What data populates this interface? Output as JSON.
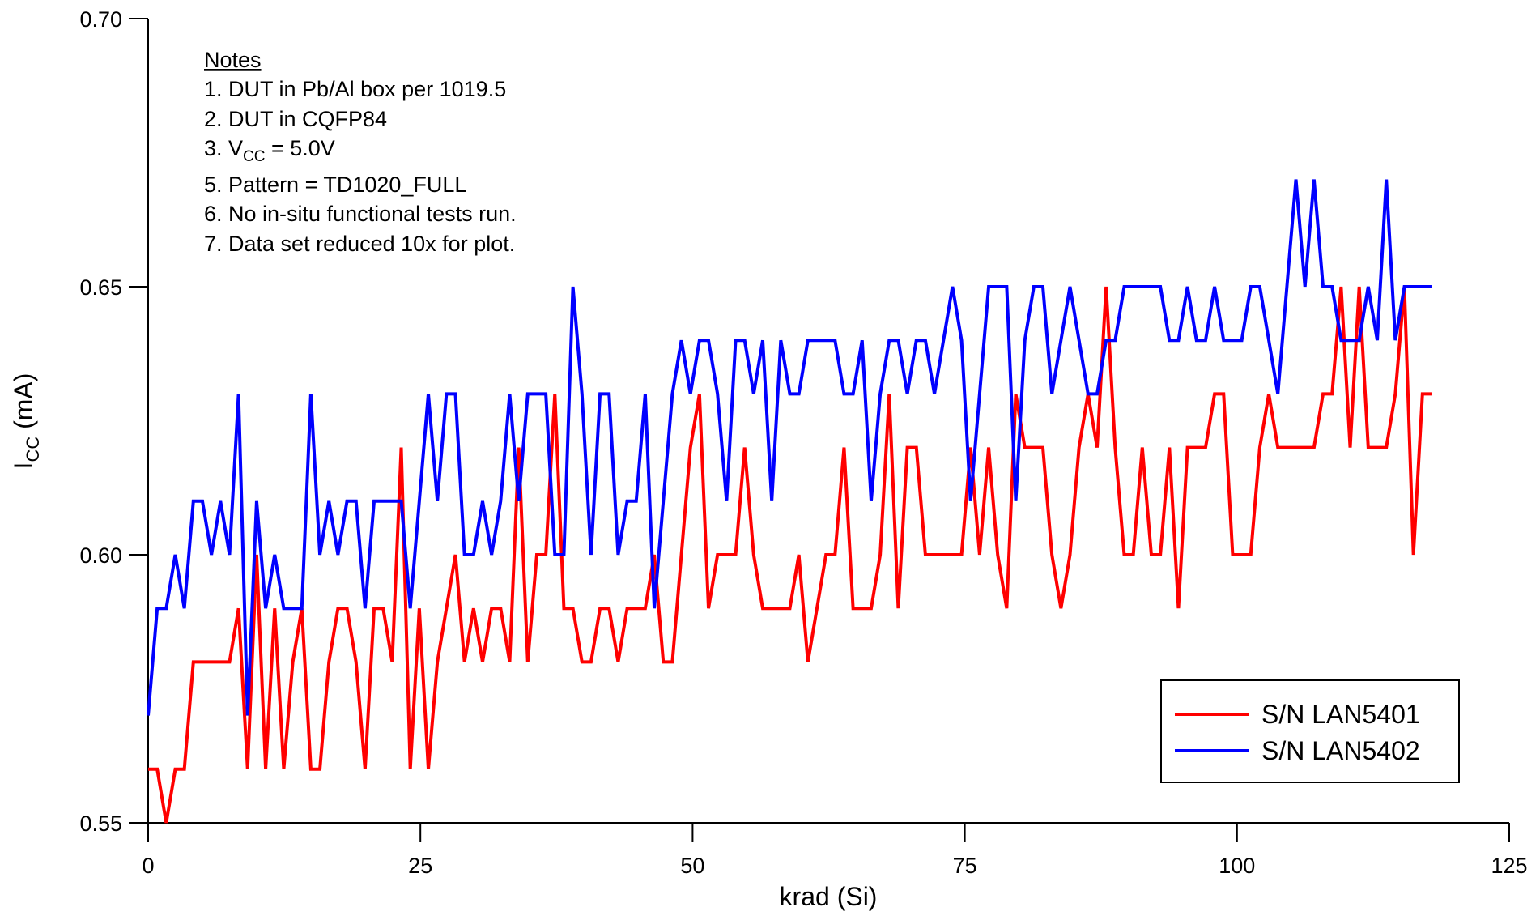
{
  "chart_data": {
    "type": "line",
    "xlabel": "krad (Si)",
    "ylabel": {
      "main": "I",
      "sub": "CC",
      "tail": " (mA)"
    },
    "notes": {
      "title": "Notes",
      "lines": [
        {
          "text": "1. DUT in Pb/Al box per 1019.5"
        },
        {
          "text": "2. DUT in CQFP84"
        },
        {
          "text": "3. V",
          "sub": "CC",
          "tail": " = 5.0V"
        },
        {
          "text": "5. Pattern = TD1020_FULL"
        },
        {
          "text": "6. No in-situ functional tests run."
        },
        {
          "text": "7. Data set reduced 10x for plot."
        }
      ]
    },
    "xlim": [
      0,
      125
    ],
    "xticks": [
      0,
      25,
      50,
      75,
      100,
      125
    ],
    "ylim": [
      0.55,
      0.7
    ],
    "yticks": [
      {
        "value": 0.55,
        "label": "0.55"
      },
      {
        "value": 0.6,
        "label": "0.60"
      },
      {
        "value": 0.65,
        "label": "0.65"
      },
      {
        "value": 0.7,
        "label": "0.70"
      }
    ],
    "grid": false,
    "legend": "lower right",
    "x": [
      0,
      0.83,
      1.66,
      2.49,
      3.32,
      4.15,
      4.98,
      5.81,
      6.64,
      7.47,
      8.3,
      9.13,
      9.96,
      10.79,
      11.62,
      12.45,
      13.28,
      14.11,
      14.94,
      15.77,
      16.6,
      17.43,
      18.26,
      19.09,
      19.92,
      20.75,
      21.58,
      22.41,
      23.24,
      24.07,
      24.9,
      25.73,
      26.56,
      27.39,
      28.22,
      29.05,
      29.88,
      30.71,
      31.54,
      32.37,
      33.2,
      34.03,
      34.86,
      35.69,
      36.52,
      37.35,
      38.18,
      39.01,
      39.84,
      40.67,
      41.5,
      42.33,
      43.16,
      43.99,
      44.82,
      45.65,
      46.48,
      47.31,
      48.14,
      48.97,
      49.8,
      50.63,
      51.46,
      52.29,
      53.12,
      53.95,
      54.78,
      55.61,
      56.44,
      57.27,
      58.1,
      58.93,
      59.76,
      60.59,
      61.42,
      62.25,
      63.08,
      63.91,
      64.74,
      65.57,
      66.4,
      67.23,
      68.06,
      68.89,
      69.72,
      70.55,
      71.38,
      72.21,
      73.04,
      73.87,
      74.7,
      75.53,
      76.36,
      77.19,
      78.02,
      78.85,
      79.68,
      80.51,
      81.34,
      82.17,
      83,
      83.83,
      84.66,
      85.49,
      86.32,
      87.15,
      87.98,
      88.81,
      89.64,
      90.47,
      91.3,
      92.13,
      92.96,
      93.79,
      94.62,
      95.45,
      96.28,
      97.11,
      97.94,
      98.77,
      99.6,
      100.43,
      101.26,
      102.09,
      102.92,
      103.75,
      104.58,
      105.41,
      106.24,
      107.07,
      107.9,
      108.73,
      109.56,
      110.39,
      111.22,
      112.05,
      112.88,
      113.71,
      114.54,
      115.37,
      116.2,
      117.03,
      117.86
    ],
    "series": [
      {
        "name": "S/N LAN5401",
        "color": "#ff0000",
        "values": [
          0.56,
          0.56,
          0.55,
          0.56,
          0.56,
          0.58,
          0.58,
          0.58,
          0.58,
          0.58,
          0.59,
          0.56,
          0.6,
          0.56,
          0.59,
          0.56,
          0.58,
          0.59,
          0.56,
          0.56,
          0.58,
          0.59,
          0.59,
          0.58,
          0.56,
          0.59,
          0.59,
          0.58,
          0.62,
          0.56,
          0.59,
          0.56,
          0.58,
          0.59,
          0.6,
          0.58,
          0.59,
          0.58,
          0.59,
          0.59,
          0.58,
          0.62,
          0.58,
          0.6,
          0.6,
          0.63,
          0.59,
          0.59,
          0.58,
          0.58,
          0.59,
          0.59,
          0.58,
          0.59,
          0.59,
          0.59,
          0.6,
          0.58,
          0.58,
          0.6,
          0.62,
          0.63,
          0.59,
          0.6,
          0.6,
          0.6,
          0.62,
          0.6,
          0.59,
          0.59,
          0.59,
          0.59,
          0.6,
          0.58,
          0.59,
          0.6,
          0.6,
          0.62,
          0.59,
          0.59,
          0.59,
          0.6,
          0.63,
          0.59,
          0.62,
          0.62,
          0.6,
          0.6,
          0.6,
          0.6,
          0.6,
          0.62,
          0.6,
          0.62,
          0.6,
          0.59,
          0.63,
          0.62,
          0.62,
          0.62,
          0.6,
          0.59,
          0.6,
          0.62,
          0.63,
          0.62,
          0.65,
          0.62,
          0.6,
          0.6,
          0.62,
          0.6,
          0.6,
          0.62,
          0.59,
          0.62,
          0.62,
          0.62,
          0.63,
          0.63,
          0.6,
          0.6,
          0.6,
          0.62,
          0.63,
          0.62,
          0.62,
          0.62,
          0.62,
          0.62,
          0.63,
          0.63,
          0.65,
          0.62,
          0.65,
          0.62,
          0.62,
          0.62,
          0.63,
          0.65,
          0.6,
          0.63,
          0.63
        ]
      },
      {
        "name": "S/N LAN5402",
        "color": "#0000ff",
        "values": [
          0.57,
          0.59,
          0.59,
          0.6,
          0.59,
          0.61,
          0.61,
          0.6,
          0.61,
          0.6,
          0.63,
          0.57,
          0.61,
          0.59,
          0.6,
          0.59,
          0.59,
          0.59,
          0.63,
          0.6,
          0.61,
          0.6,
          0.61,
          0.61,
          0.59,
          0.61,
          0.61,
          0.61,
          0.61,
          0.59,
          0.61,
          0.63,
          0.61,
          0.63,
          0.63,
          0.6,
          0.6,
          0.61,
          0.6,
          0.61,
          0.63,
          0.61,
          0.63,
          0.63,
          0.63,
          0.6,
          0.6,
          0.65,
          0.63,
          0.6,
          0.63,
          0.63,
          0.6,
          0.61,
          0.61,
          0.63,
          0.59,
          0.61,
          0.63,
          0.64,
          0.63,
          0.64,
          0.64,
          0.63,
          0.61,
          0.64,
          0.64,
          0.63,
          0.64,
          0.61,
          0.64,
          0.63,
          0.63,
          0.64,
          0.64,
          0.64,
          0.64,
          0.63,
          0.63,
          0.64,
          0.61,
          0.63,
          0.64,
          0.64,
          0.63,
          0.64,
          0.64,
          0.63,
          0.64,
          0.65,
          0.64,
          0.61,
          0.63,
          0.65,
          0.65,
          0.65,
          0.61,
          0.64,
          0.65,
          0.65,
          0.63,
          0.64,
          0.65,
          0.64,
          0.63,
          0.63,
          0.64,
          0.64,
          0.65,
          0.65,
          0.65,
          0.65,
          0.65,
          0.64,
          0.64,
          0.65,
          0.64,
          0.64,
          0.65,
          0.64,
          0.64,
          0.64,
          0.65,
          0.65,
          0.64,
          0.63,
          0.65,
          0.67,
          0.65,
          0.67,
          0.65,
          0.65,
          0.64,
          0.64,
          0.64,
          0.65,
          0.64,
          0.67,
          0.64,
          0.65,
          0.65,
          0.65,
          0.65
        ]
      }
    ]
  }
}
